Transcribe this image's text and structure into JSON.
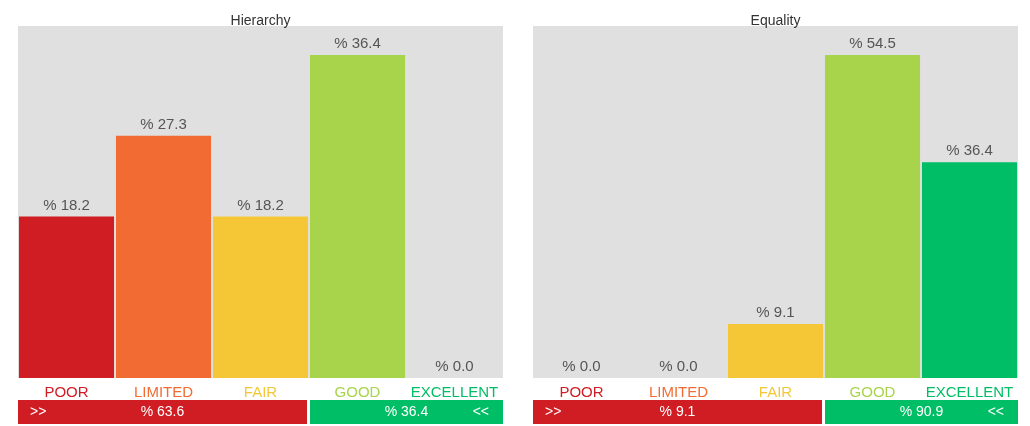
{
  "chart_data": [
    {
      "type": "bar",
      "title": "Hierarchy",
      "categories": [
        "POOR",
        "LIMITED",
        "FAIR",
        "GOOD",
        "EXCELLENT"
      ],
      "values": [
        18.2,
        27.3,
        18.2,
        36.4,
        0.0
      ],
      "value_labels": [
        "% 18.2",
        "% 27.3",
        "% 18.2",
        "% 36.4",
        "% 0.0"
      ],
      "colors": [
        "#d01c23",
        "#f26b33",
        "#f5c737",
        "#a8d44b",
        "#00be65"
      ],
      "annotations": [
        ">>",
        "% 63.6",
        "% 36.4",
        "<<"
      ]
    },
    {
      "type": "bar",
      "title": "Equality",
      "categories": [
        "POOR",
        "LIMITED",
        "FAIR",
        "GOOD",
        "EXCELLENT"
      ],
      "values": [
        0.0,
        0.0,
        9.1,
        54.5,
        36.4
      ],
      "value_labels": [
        "% 0.0",
        "% 0.0",
        "% 9.1",
        "% 54.5",
        "% 36.4"
      ],
      "colors": [
        "#d01c23",
        "#f26b33",
        "#f5c737",
        "#a8d44b",
        "#00be65"
      ],
      "annotations": [
        ">>",
        "% 9.1",
        "% 90.9",
        "<<"
      ]
    }
  ]
}
